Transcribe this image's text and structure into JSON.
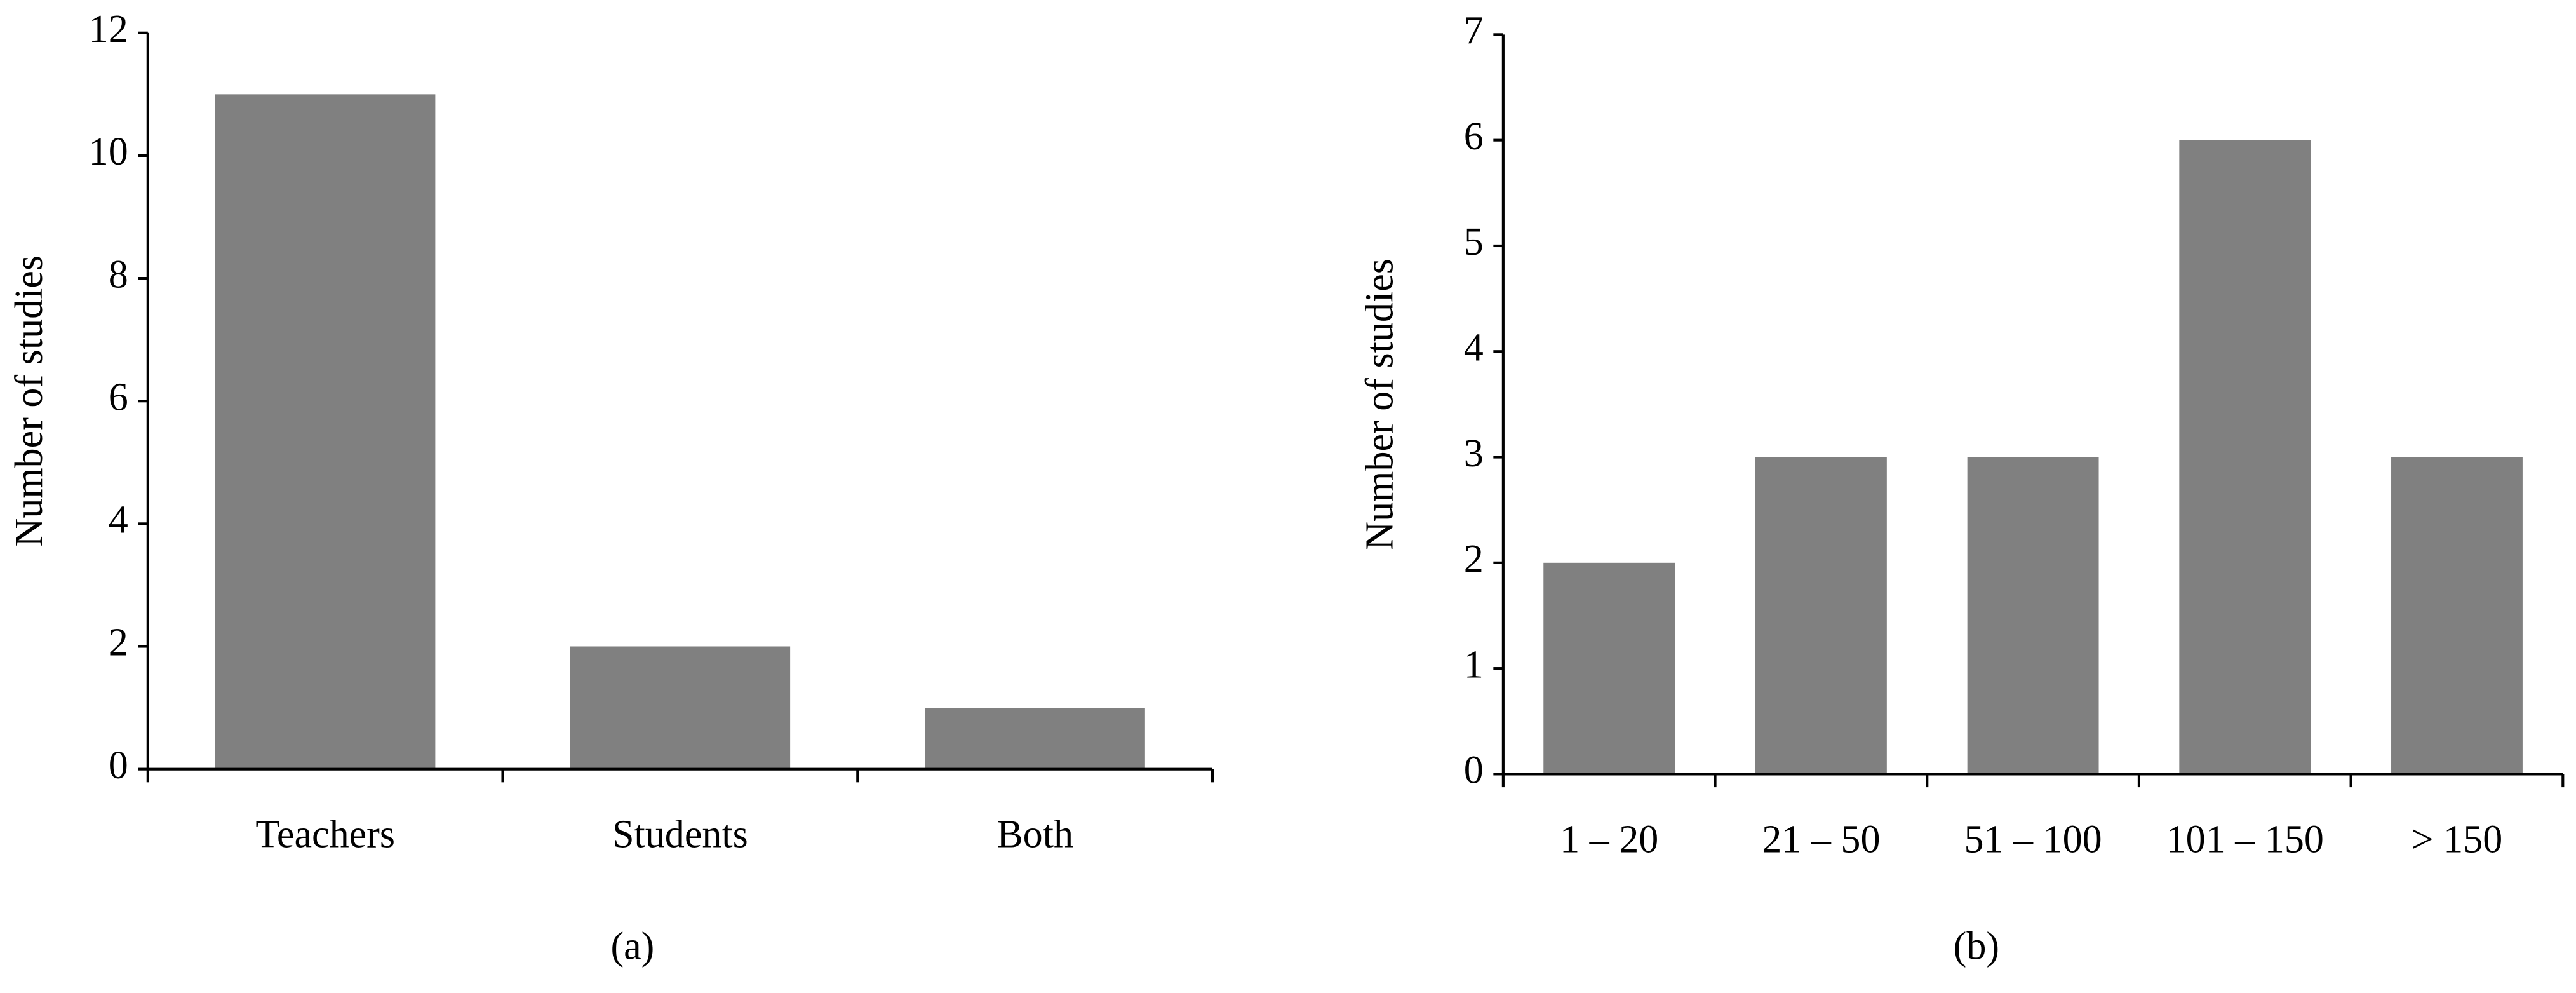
{
  "chart_data": [
    {
      "type": "bar",
      "caption": "(a)",
      "y_label": "Number of studies",
      "categories": [
        "Teachers",
        "Students",
        "Both"
      ],
      "values": [
        11,
        2,
        1
      ],
      "color": "#808080",
      "ylim": [
        0,
        12
      ],
      "yticks": [
        0,
        2,
        4,
        6,
        8,
        10,
        12
      ]
    },
    {
      "type": "bar",
      "caption": "(b)",
      "y_label": "Number of studies",
      "categories": [
        "1 – 20",
        "21 – 50",
        "51 – 100",
        "101 – 150",
        "> 150"
      ],
      "values": [
        2,
        3,
        3,
        6,
        3
      ],
      "color": "#808080",
      "ylim": [
        0,
        7
      ],
      "yticks": [
        0,
        1,
        2,
        3,
        4,
        5,
        6,
        7
      ]
    }
  ]
}
